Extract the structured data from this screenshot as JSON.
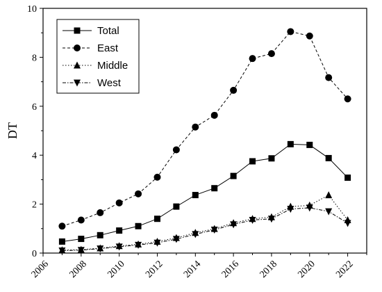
{
  "chart_data": {
    "type": "line",
    "ylabel": "DT",
    "xlabel": "",
    "xlim": [
      2006,
      2023
    ],
    "ylim": [
      0,
      10
    ],
    "x_ticks": [
      "2006",
      "2008",
      "2010",
      "2012",
      "2014",
      "2016",
      "2018",
      "2020",
      "2022"
    ],
    "y_ticks": [
      "0",
      "2",
      "4",
      "6",
      "8",
      "10"
    ],
    "legend_position": "top-left",
    "grid": false,
    "x": [
      2007,
      2008,
      2009,
      2010,
      2011,
      2012,
      2013,
      2014,
      2015,
      2016,
      2017,
      2018,
      2019,
      2020,
      2021,
      2022
    ],
    "series": [
      {
        "name": "Total",
        "marker": "square",
        "line_style": "solid",
        "values": [
          0.47,
          0.58,
          0.73,
          0.92,
          1.1,
          1.4,
          1.9,
          2.37,
          2.65,
          3.15,
          3.75,
          3.87,
          4.45,
          4.42,
          3.88,
          3.08
        ]
      },
      {
        "name": "East",
        "marker": "circle",
        "line_style": "dashed",
        "values": [
          1.1,
          1.35,
          1.65,
          2.05,
          2.42,
          3.1,
          4.22,
          5.15,
          5.63,
          6.65,
          7.95,
          8.15,
          9.05,
          8.87,
          7.17,
          6.3
        ]
      },
      {
        "name": "Middle",
        "marker": "triangle-up",
        "line_style": "dotted",
        "values": [
          0.12,
          0.14,
          0.2,
          0.29,
          0.36,
          0.47,
          0.62,
          0.83,
          0.99,
          1.23,
          1.4,
          1.47,
          1.9,
          1.95,
          2.37,
          1.35
        ]
      },
      {
        "name": "West",
        "marker": "triangle-down",
        "line_style": "dashdot",
        "values": [
          0.1,
          0.12,
          0.18,
          0.26,
          0.33,
          0.42,
          0.57,
          0.77,
          0.95,
          1.17,
          1.35,
          1.4,
          1.8,
          1.85,
          1.7,
          1.22
        ]
      }
    ]
  }
}
